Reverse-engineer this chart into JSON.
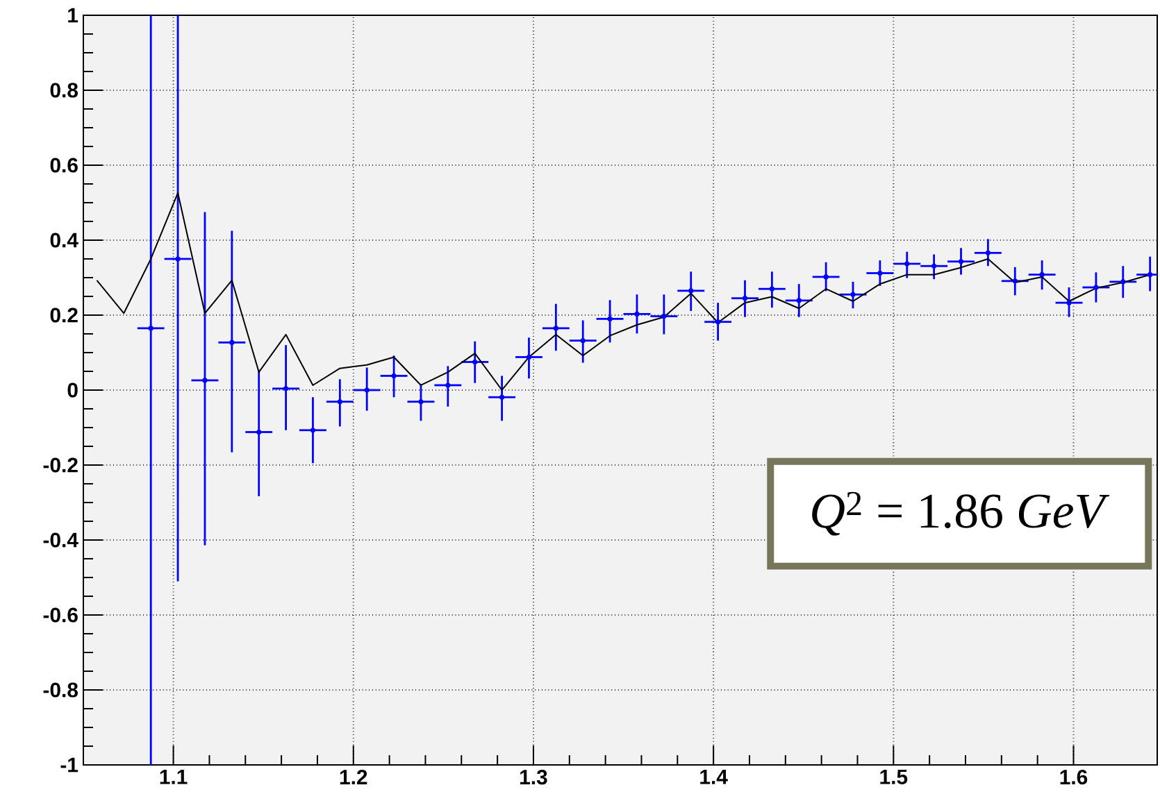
{
  "chart_data": {
    "type": "scatter",
    "xlim": [
      1.05,
      1.6465
    ],
    "ylim": [
      -1,
      1
    ],
    "xticks": [
      1.1,
      1.2,
      1.3,
      1.4,
      1.5,
      1.6
    ],
    "yticks": [
      -1,
      -0.8,
      -0.6,
      -0.4,
      -0.2,
      0,
      0.2,
      0.4,
      0.6,
      0.8,
      1
    ],
    "grid": true,
    "annotations": [
      "*Q*$^{2}$ = 1.86 *GeV*"
    ],
    "series": [
      {
        "color": "#0000ff",
        "marker": "circle",
        "x": [
          1.0875,
          1.1025,
          1.1175,
          1.1325,
          1.1475,
          1.1625,
          1.1775,
          1.1925,
          1.2075,
          1.2225,
          1.2375,
          1.2525,
          1.2675,
          1.2825,
          1.2975,
          1.3125,
          1.3275,
          1.3425,
          1.3575,
          1.3725,
          1.3875,
          1.4025,
          1.4175,
          1.4325,
          1.4475,
          1.4625,
          1.4775,
          1.4925,
          1.5075,
          1.5225,
          1.5375,
          1.5525,
          1.5675,
          1.5825,
          1.5975,
          1.6125,
          1.6275,
          1.6425
        ],
        "values": [
          0.165,
          0.35,
          0.026,
          0.127,
          -0.112,
          0.004,
          -0.107,
          -0.031,
          0,
          0.038,
          -0.031,
          0.013,
          0.075,
          -0.019,
          0.088,
          0.165,
          0.132,
          0.19,
          0.203,
          0.197,
          0.265,
          0.182,
          0.245,
          0.27,
          0.239,
          0.302,
          0.255,
          0.312,
          0.337,
          0.331,
          0.343,
          0.366,
          0.291,
          0.308,
          0.233,
          0.274,
          0.289,
          0.308
        ],
        "errors": [
          [
            -1,
            1
          ],
          [
            -0.51,
            1
          ],
          [
            -0.414,
            0.475
          ],
          [
            -0.166,
            0.425
          ],
          [
            -0.283,
            0.054
          ],
          [
            -0.107,
            0.12
          ],
          [
            -0.195,
            -0.019
          ],
          [
            -0.097,
            0.029
          ],
          [
            -0.055,
            0.06
          ],
          [
            -0.019,
            0.092
          ],
          [
            -0.082,
            0.016
          ],
          [
            -0.044,
            0.064
          ],
          [
            0.019,
            0.13
          ],
          [
            -0.082,
            0.038
          ],
          [
            0.031,
            0.14
          ],
          [
            0.105,
            0.23
          ],
          [
            0.073,
            0.186
          ],
          [
            0.127,
            0.24
          ],
          [
            0.151,
            0.255
          ],
          [
            0.149,
            0.255
          ],
          [
            0.211,
            0.316
          ],
          [
            0.132,
            0.233
          ],
          [
            0.195,
            0.293
          ],
          [
            0.22,
            0.316
          ],
          [
            0.195,
            0.283
          ],
          [
            0.264,
            0.341
          ],
          [
            0.218,
            0.289
          ],
          [
            0.278,
            0.346
          ],
          [
            0.299,
            0.369
          ],
          [
            0.296,
            0.362
          ],
          [
            0.308,
            0.379
          ],
          [
            0.331,
            0.403
          ],
          [
            0.253,
            0.328
          ],
          [
            0.268,
            0.346
          ],
          [
            0.195,
            0.274
          ],
          [
            0.234,
            0.314
          ],
          [
            0.246,
            0.331
          ],
          [
            0.264,
            0.356
          ]
        ],
        "xerrors": [
          0.0075,
          0.0075,
          0.0075,
          0.0075,
          0.0075,
          0.0075,
          0.0075,
          0.0075,
          0.0075,
          0.0075,
          0.0075,
          0.0075,
          0.0075,
          0.0075,
          0.0075,
          0.0075,
          0.0075,
          0.0075,
          0.0075,
          0.0075,
          0.0075,
          0.0075,
          0.0075,
          0.0075,
          0.0075,
          0.0075,
          0.0075,
          0.0075,
          0.0075,
          0.0075,
          0.0075,
          0.0075,
          0.0075,
          0.0075,
          0.0075,
          0.0075,
          0.0075,
          0.0075
        ]
      },
      {
        "type": "line",
        "color": "#000000",
        "marker": "none",
        "x": [
          1.0575,
          1.0725,
          1.0875,
          1.1025,
          1.1175,
          1.1325,
          1.1475,
          1.1625,
          1.1775,
          1.1925,
          1.2075,
          1.2225,
          1.2375,
          1.2525,
          1.2675,
          1.2825,
          1.2975,
          1.3125,
          1.3275,
          1.3425,
          1.3575,
          1.3725,
          1.3875,
          1.4025,
          1.4175,
          1.4325,
          1.4475,
          1.4625,
          1.4775,
          1.4925,
          1.5075,
          1.5225,
          1.5375,
          1.5525,
          1.5675,
          1.5825,
          1.5975,
          1.6125,
          1.6275,
          1.6425
        ],
        "values": [
          0.293,
          0.205,
          0.35,
          0.526,
          0.205,
          0.293,
          0.048,
          0.148,
          0.013,
          0.058,
          0.067,
          0.088,
          0.013,
          0.048,
          0.098,
          0,
          0.088,
          0.148,
          0.092,
          0.145,
          0.174,
          0.195,
          0.258,
          0.18,
          0.233,
          0.249,
          0.218,
          0.27,
          0.237,
          0.283,
          0.308,
          0.308,
          0.327,
          0.35,
          0.287,
          0.302,
          0.237,
          0.272,
          0.287,
          0.308
        ]
      }
    ]
  }
}
